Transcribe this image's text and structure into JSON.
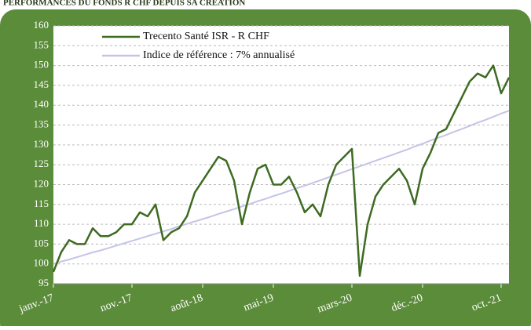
{
  "chart_data": {
    "type": "line",
    "title": "PERFORMANCES DU FONDS R CHF DEPUIS SA CRÉATION",
    "x": [
      "2017-01",
      "2017-02",
      "2017-03",
      "2017-04",
      "2017-05",
      "2017-06",
      "2017-07",
      "2017-08",
      "2017-09",
      "2017-10",
      "2017-11",
      "2017-12",
      "2018-01",
      "2018-02",
      "2018-03",
      "2018-04",
      "2018-05",
      "2018-06",
      "2018-07",
      "2018-08",
      "2018-09",
      "2018-10",
      "2018-11",
      "2018-12",
      "2019-01",
      "2019-02",
      "2019-03",
      "2019-04",
      "2019-05",
      "2019-06",
      "2019-07",
      "2019-08",
      "2019-09",
      "2019-10",
      "2019-11",
      "2019-12",
      "2020-01",
      "2020-02",
      "2020-03",
      "2020-04",
      "2020-05",
      "2020-06",
      "2020-07",
      "2020-08",
      "2020-09",
      "2020-10",
      "2020-11",
      "2020-12",
      "2021-01",
      "2021-02",
      "2021-03",
      "2021-04",
      "2021-05",
      "2021-06",
      "2021-07",
      "2021-08",
      "2021-09",
      "2021-10",
      "2021-11"
    ],
    "series": [
      {
        "name": "Trecento Santé ISR - R CHF",
        "color": "#3d6b22",
        "values": [
          98,
          103,
          106,
          105,
          105,
          109,
          107,
          107,
          108,
          110,
          110,
          113,
          112,
          115,
          106,
          108,
          109,
          112,
          118,
          121,
          124,
          127,
          126,
          121,
          110,
          118,
          124,
          125,
          120,
          120,
          122,
          118,
          113,
          115,
          112,
          120,
          125,
          127,
          129,
          97,
          110,
          117,
          120,
          122,
          124,
          121,
          115,
          124,
          128,
          133,
          134,
          138,
          142,
          146,
          148,
          147,
          150,
          143,
          147
        ]
      },
      {
        "name": "Indice de référence : 7% annualisé",
        "color": "#c4c4e6",
        "values": [
          100,
          100.6,
          101.1,
          101.7,
          102.3,
          102.9,
          103.4,
          104.0,
          104.6,
          105.2,
          105.8,
          106.4,
          107.0,
          107.6,
          108.2,
          108.8,
          109.5,
          110.1,
          110.7,
          111.3,
          111.9,
          112.6,
          113.2,
          113.8,
          114.5,
          115.1,
          115.8,
          116.4,
          117.1,
          117.7,
          118.4,
          119.1,
          119.7,
          120.4,
          121.1,
          121.8,
          122.5,
          123.2,
          123.9,
          124.6,
          125.3,
          126.0,
          126.7,
          127.4,
          128.1,
          128.8,
          129.6,
          130.3,
          131.1,
          131.8,
          132.5,
          133.3,
          134.0,
          134.8,
          135.6,
          136.3,
          137.1,
          137.9,
          138.6
        ]
      }
    ],
    "xlim": [
      "2017-01",
      "2021-11"
    ],
    "xticks": [
      {
        "value": "2017-01",
        "label": "janv.-17"
      },
      {
        "value": "2017-11",
        "label": "nov.-17"
      },
      {
        "value": "2018-08",
        "label": "août-18"
      },
      {
        "value": "2019-05",
        "label": "mai-19"
      },
      {
        "value": "2020-03",
        "label": "mars-20"
      },
      {
        "value": "2020-12",
        "label": "déc.-20"
      },
      {
        "value": "2021-10",
        "label": "oct.-21"
      }
    ],
    "ylim": [
      95,
      160
    ],
    "yticks": [
      95,
      100,
      105,
      110,
      115,
      120,
      125,
      130,
      135,
      140,
      145,
      150,
      155,
      160
    ],
    "grid": true,
    "legend": "top-left"
  }
}
